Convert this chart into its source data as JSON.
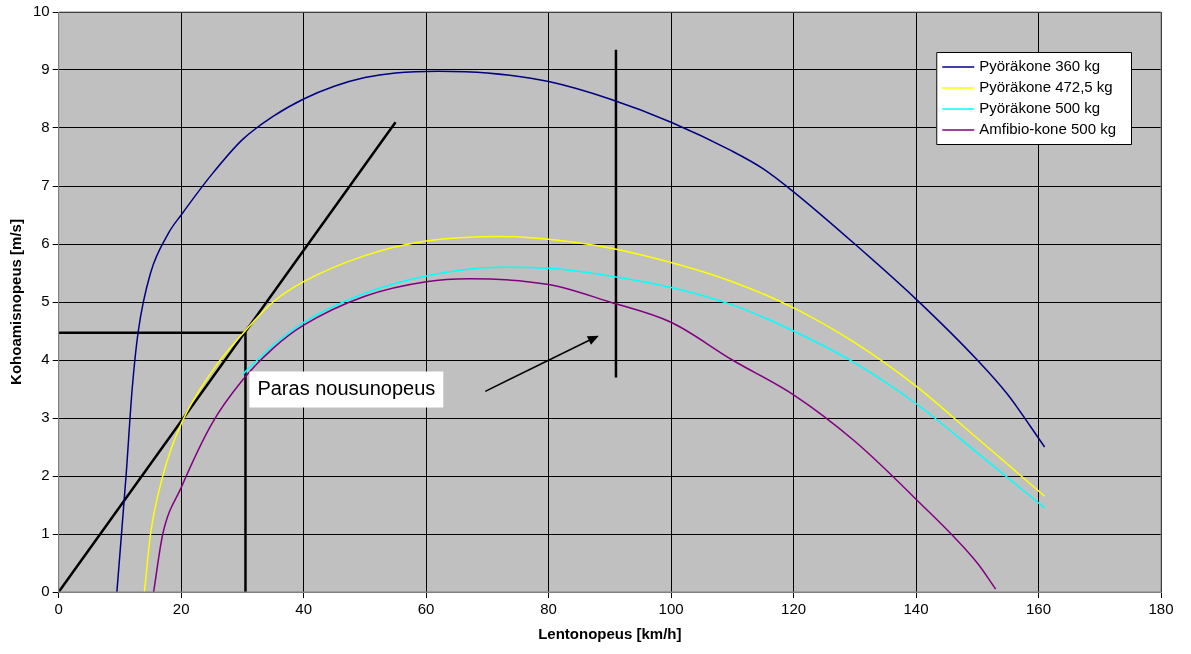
{
  "chart_data": {
    "type": "line",
    "xlabel": "Lentonopeus [km/h]",
    "ylabel": "Kohoamisnopeus [m/s]",
    "xlim": [
      0,
      180
    ],
    "xticks": [
      0,
      20,
      40,
      60,
      80,
      100,
      120,
      140,
      160,
      180
    ],
    "ylim": [
      0,
      10
    ],
    "yticks": [
      0,
      1,
      2,
      3,
      4,
      5,
      6,
      7,
      8,
      9,
      10
    ],
    "grid": true,
    "legend": "top right",
    "marker": "none",
    "line_style": "solid",
    "annotations": [
      "Paras nousunopeus"
    ],
    "series": [
      {
        "name": "Pyöräkone 360 kg",
        "color": "#000080",
        "x": [
          9.5,
          11,
          12,
          13,
          15,
          18,
          20,
          25,
          30,
          35,
          40,
          45,
          50,
          55,
          62,
          70,
          80,
          90,
          100,
          110,
          115,
          120,
          130,
          140,
          150,
          155,
          161
        ],
        "values": [
          0,
          2,
          3.5,
          4.5,
          5.5,
          6.2,
          6.5,
          7.2,
          7.8,
          8.2,
          8.5,
          8.72,
          8.87,
          8.95,
          8.98,
          8.95,
          8.8,
          8.5,
          8.1,
          7.6,
          7.3,
          6.9,
          6,
          5.05,
          4,
          3.4,
          2.5
        ]
      },
      {
        "name": "Pyöräkone 472,5 kg",
        "color": "#ffff00",
        "x": [
          14,
          15,
          17,
          20,
          25,
          30,
          35,
          40,
          50,
          60,
          72,
          80,
          90,
          100,
          110,
          120,
          130,
          140,
          150,
          161
        ],
        "values": [
          0,
          1,
          2,
          2.9,
          3.8,
          4.45,
          5,
          5.35,
          5.8,
          6.05,
          6.13,
          6.08,
          5.93,
          5.68,
          5.35,
          4.9,
          4.3,
          3.55,
          2.65,
          1.65
        ]
      },
      {
        "name": "Pyöräkone 500 kg",
        "color": "#00ffff",
        "x": [
          30,
          35,
          40,
          50,
          60,
          72,
          80,
          90,
          100,
          110,
          120,
          130,
          140,
          150,
          161
        ],
        "values": [
          3.75,
          4.25,
          4.65,
          5.15,
          5.45,
          5.6,
          5.58,
          5.45,
          5.25,
          4.95,
          4.5,
          3.95,
          3.25,
          2.4,
          1.45
        ]
      },
      {
        "name": "Amfibio-kone 500 kg",
        "color": "#800080",
        "x": [
          15.5,
          17,
          20,
          25,
          30,
          35,
          40,
          50,
          60,
          67,
          80,
          90,
          100,
          110,
          120,
          130,
          140,
          150,
          153
        ],
        "values": [
          0,
          1,
          1.8,
          2.9,
          3.65,
          4.2,
          4.6,
          5.1,
          5.35,
          5.4,
          5.3,
          5,
          4.65,
          4,
          3.4,
          2.6,
          1.6,
          0.5,
          0.05
        ]
      },
      {
        "color": "#000000",
        "x": [
          0,
          55
        ],
        "values": [
          0,
          8.1
        ]
      },
      {
        "color": "#000000",
        "x": [
          0,
          30.5,
          30.5
        ],
        "values": [
          4.47,
          4.47,
          0
        ]
      },
      {
        "color": "#000000",
        "x": [
          91,
          91
        ],
        "values": [
          3.7,
          9.35
        ]
      }
    ]
  }
}
